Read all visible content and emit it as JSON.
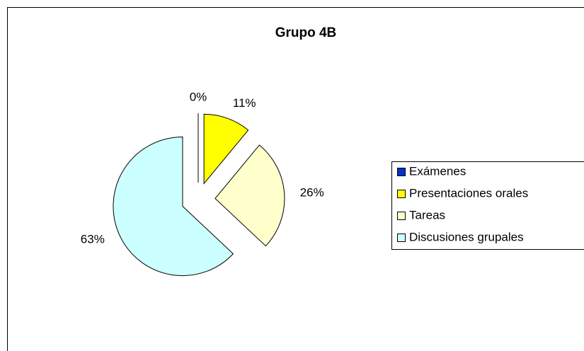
{
  "chart_data": {
    "type": "pie",
    "title": "Grupo 4B",
    "categories": [
      "Exámenes",
      "Presentaciones orales",
      "Tareas",
      "Discusiones grupales"
    ],
    "values": [
      0,
      11,
      26,
      63
    ],
    "value_labels": [
      "0%",
      "11%",
      "26%",
      "63%"
    ],
    "colors": [
      "#0033cc",
      "#ffff00",
      "#ffffcc",
      "#ccffff"
    ],
    "legend": "right",
    "exploded": true
  }
}
